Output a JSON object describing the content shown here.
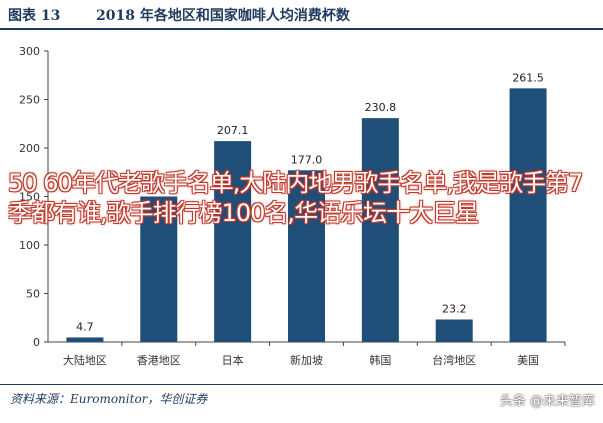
{
  "header": {
    "figure_number": "图表 13",
    "title": "2018 年各地区和国家咖啡人均消费杯数"
  },
  "source": "资料来源：Euromonitor，华创证券",
  "watermark": "头条 @未来智库",
  "overlay_text": "50 60年代老歌手名单,大陆内地男歌手名单,我是歌手第7季都有谁,歌手排行榜100名,华语乐坛十大巨星",
  "colors": {
    "bar": "#1f4e79",
    "axis_text": "#333333",
    "title": "#1f3a5f"
  },
  "chart_data": {
    "type": "bar",
    "categories": [
      "大陆地区",
      "香港地区",
      "日本",
      "新加坡",
      "韩国",
      "台湾地区",
      "美国"
    ],
    "values": [
      4.7,
      150,
      207.1,
      177.0,
      230.8,
      23.2,
      261.5
    ],
    "data_labels": [
      "4.7",
      "",
      "207.1",
      "177.0",
      "230.8",
      "23.2",
      "261.5"
    ],
    "yticks": [
      "0",
      "50",
      "100",
      "150",
      "200",
      "250",
      "300"
    ],
    "ylim": [
      0,
      300
    ],
    "grid": false,
    "legend": "none"
  }
}
